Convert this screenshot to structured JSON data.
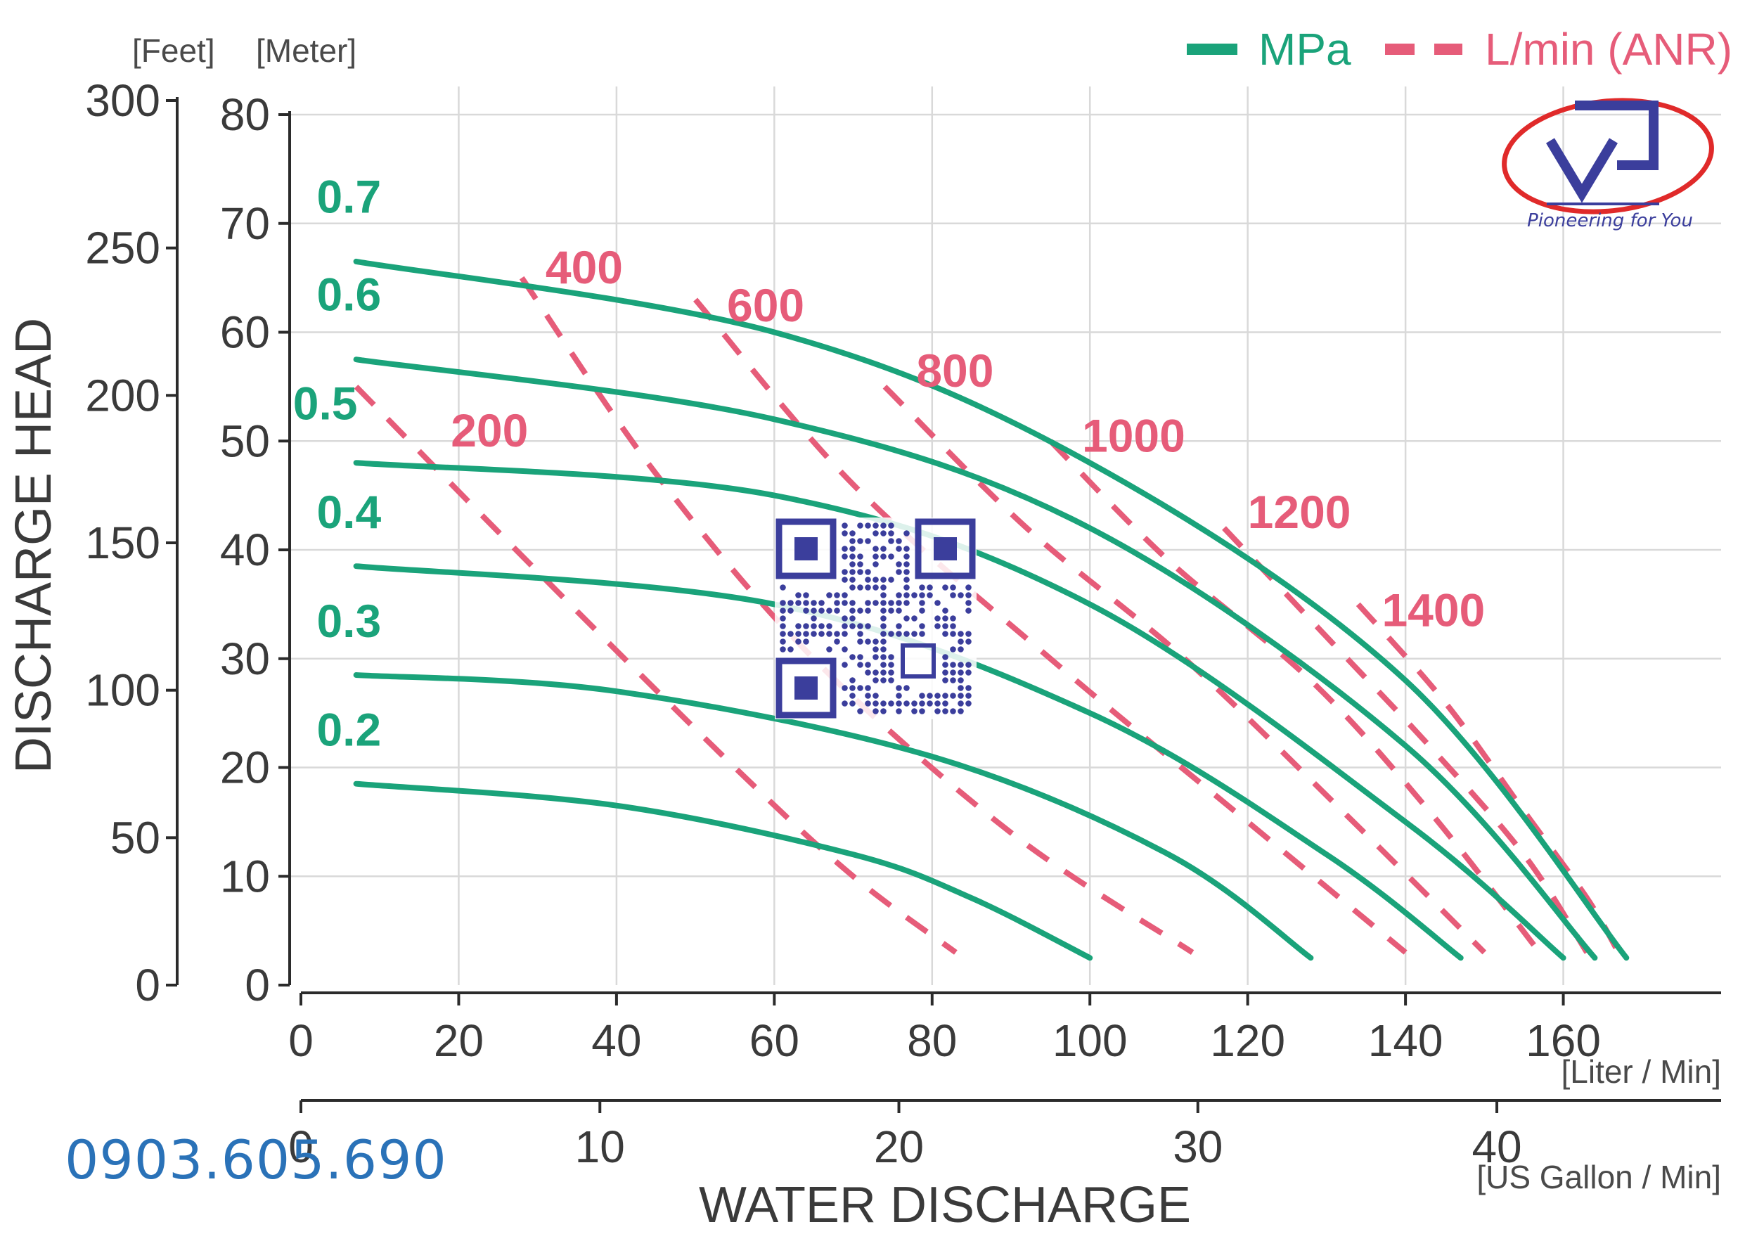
{
  "chart_data": {
    "type": "line",
    "title": "",
    "xlabel": "WATER DISCHARGE",
    "ylabel": "DISCHARGE HEAD",
    "x_primary": {
      "unit": "[Liter / Min]",
      "range": [
        0,
        180
      ],
      "ticks": [
        0,
        20,
        40,
        60,
        80,
        100,
        120,
        140,
        160
      ]
    },
    "x_secondary": {
      "unit": "[US Gallon / Min]",
      "range": [
        0,
        47.5
      ],
      "ticks": [
        0,
        10,
        20,
        30,
        40
      ]
    },
    "y_meter": {
      "unit": "[Meter]",
      "range": [
        0,
        80
      ],
      "ticks": [
        0,
        10,
        20,
        30,
        40,
        50,
        60,
        70,
        80
      ]
    },
    "y_feet": {
      "unit": "[Feet]",
      "range": [
        0,
        300
      ],
      "ticks": [
        0,
        50,
        100,
        150,
        200,
        250,
        300
      ]
    },
    "grid": true,
    "legend": {
      "placement": "top-right",
      "entries": [
        {
          "name": "MPa",
          "style": "solid",
          "color": "#1aa37a"
        },
        {
          "name": "L/min (ANR)",
          "style": "dashed",
          "color": "#e65c79"
        }
      ]
    },
    "series": [
      {
        "name": "0.2",
        "style": "solid",
        "points": [
          [
            7,
            18.5
          ],
          [
            40,
            16.5
          ],
          [
            70,
            12
          ],
          [
            85,
            8
          ],
          [
            100,
            2.5
          ]
        ]
      },
      {
        "name": "0.3",
        "style": "solid",
        "points": [
          [
            7,
            28.5
          ],
          [
            40,
            27
          ],
          [
            80,
            21
          ],
          [
            110,
            12
          ],
          [
            128,
            2.5
          ]
        ]
      },
      {
        "name": "0.4",
        "style": "solid",
        "points": [
          [
            7,
            38.5
          ],
          [
            60,
            35
          ],
          [
            100,
            25
          ],
          [
            130,
            12
          ],
          [
            147,
            2.5
          ]
        ]
      },
      {
        "name": "0.5",
        "style": "solid",
        "points": [
          [
            7,
            48
          ],
          [
            60,
            45
          ],
          [
            100,
            35
          ],
          [
            140,
            15
          ],
          [
            160,
            2.5
          ]
        ]
      },
      {
        "name": "0.6",
        "style": "solid",
        "points": [
          [
            7,
            57.5
          ],
          [
            60,
            52
          ],
          [
            100,
            42
          ],
          [
            140,
            22
          ],
          [
            164,
            2.5
          ]
        ]
      },
      {
        "name": "0.7",
        "style": "solid",
        "points": [
          [
            7,
            66.5
          ],
          [
            60,
            60
          ],
          [
            100,
            48
          ],
          [
            140,
            28
          ],
          [
            168,
            2.5
          ]
        ]
      },
      {
        "name": "200",
        "style": "dashed",
        "points": [
          [
            7,
            55
          ],
          [
            30,
            38
          ],
          [
            55,
            20
          ],
          [
            70,
            10
          ],
          [
            83,
            3
          ]
        ]
      },
      {
        "name": "400",
        "style": "dashed",
        "points": [
          [
            28,
            65
          ],
          [
            45,
            47
          ],
          [
            65,
            30
          ],
          [
            90,
            14
          ],
          [
            113,
            3
          ]
        ]
      },
      {
        "name": "600",
        "style": "dashed",
        "points": [
          [
            50,
            63
          ],
          [
            70,
            46
          ],
          [
            95,
            30
          ],
          [
            120,
            15
          ],
          [
            140,
            3
          ]
        ]
      },
      {
        "name": "800",
        "style": "dashed",
        "points": [
          [
            74,
            55
          ],
          [
            92,
            42
          ],
          [
            112,
            30
          ],
          [
            132,
            16
          ],
          [
            150,
            3
          ]
        ]
      },
      {
        "name": "1000",
        "style": "dashed",
        "points": [
          [
            95,
            50
          ],
          [
            110,
            39
          ],
          [
            128,
            28
          ],
          [
            143,
            16
          ],
          [
            157,
            3
          ]
        ]
      },
      {
        "name": "1200",
        "style": "dashed",
        "points": [
          [
            117,
            42
          ],
          [
            130,
            32
          ],
          [
            143,
            22
          ],
          [
            155,
            12
          ],
          [
            163,
            3
          ]
        ]
      },
      {
        "name": "1400",
        "style": "dashed",
        "points": [
          [
            134,
            35
          ],
          [
            145,
            26
          ],
          [
            155,
            16
          ],
          [
            163,
            8
          ],
          [
            167,
            3
          ]
        ]
      }
    ],
    "curve_labels": {
      "mpa": [
        {
          "text": "0.7",
          "x": 2,
          "y": 71
        },
        {
          "text": "0.6",
          "x": 2,
          "y": 62
        },
        {
          "text": "0.5",
          "x": -1,
          "y": 52
        },
        {
          "text": "0.4",
          "x": 2,
          "y": 42
        },
        {
          "text": "0.3",
          "x": 2,
          "y": 32
        },
        {
          "text": "0.2",
          "x": 2,
          "y": 22
        }
      ],
      "anr": [
        {
          "text": "400",
          "x": 31,
          "y": 64.5
        },
        {
          "text": "600",
          "x": 54,
          "y": 61
        },
        {
          "text": "800",
          "x": 78,
          "y": 55
        },
        {
          "text": "200",
          "x": 19,
          "y": 49.5
        },
        {
          "text": "1000",
          "x": 99,
          "y": 49
        },
        {
          "text": "1200",
          "x": 120,
          "y": 42
        },
        {
          "text": "1400",
          "x": 137,
          "y": 33
        }
      ]
    }
  },
  "branding": {
    "logo_caption": "Pioneering for You",
    "phone": "0903.605.690"
  }
}
